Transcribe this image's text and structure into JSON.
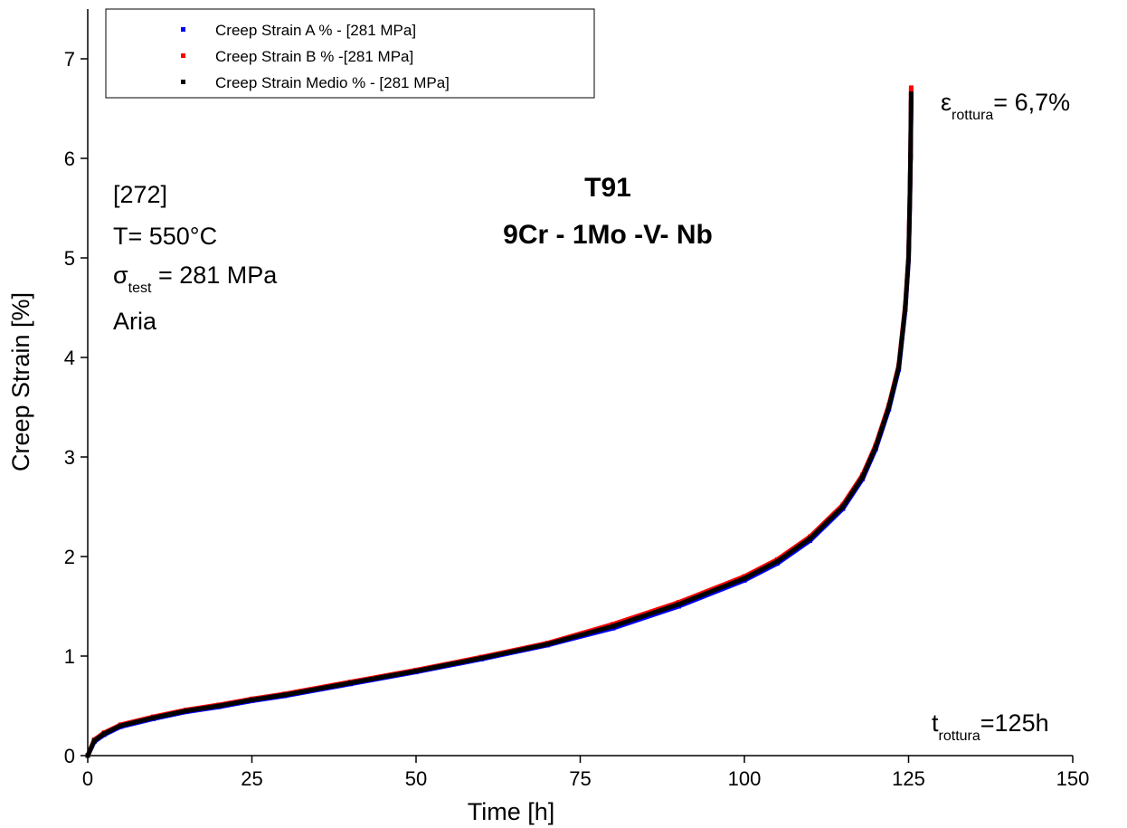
{
  "chart_data": {
    "type": "scatter",
    "x_label": "Time [h]",
    "y_label": "Creep Strain [%]",
    "xlim": [
      0,
      150
    ],
    "xticks": [
      0,
      25,
      50,
      75,
      100,
      125,
      150
    ],
    "ylim": [
      0,
      7.5
    ],
    "yticks": [
      0,
      1,
      2,
      3,
      4,
      5,
      6,
      7
    ],
    "legend": "top-left",
    "x": [
      0,
      1,
      2.5,
      5,
      10,
      15,
      20,
      25,
      30,
      40,
      50,
      60,
      70,
      80,
      90,
      100,
      105,
      110,
      115,
      118,
      120,
      122,
      123.5,
      124.5,
      125,
      125.2,
      125.3,
      125.4
    ],
    "series": [
      {
        "name": "Creep Strain A % - [281 MPa]",
        "color": "#0000ff",
        "values": [
          0,
          0.14,
          0.21,
          0.29,
          0.37,
          0.44,
          0.49,
          0.55,
          0.6,
          0.72,
          0.84,
          0.97,
          1.11,
          1.28,
          1.5,
          1.76,
          1.93,
          2.16,
          2.48,
          2.78,
          3.08,
          3.48,
          3.88,
          4.48,
          4.98,
          5.58,
          6.0,
          6.58
        ]
      },
      {
        "name": "Creep Strain B %  -[281 MPa]",
        "color": "#ff0000",
        "values": [
          0,
          0.16,
          0.23,
          0.31,
          0.39,
          0.46,
          0.51,
          0.57,
          0.62,
          0.74,
          0.86,
          0.99,
          1.13,
          1.32,
          1.54,
          1.8,
          1.97,
          2.2,
          2.52,
          2.82,
          3.12,
          3.52,
          3.92,
          4.52,
          5.02,
          5.62,
          6.04,
          6.71
        ]
      },
      {
        "name": "Creep Strain Medio %  - [281 MPa]",
        "color": "#000000",
        "values": [
          0,
          0.15,
          0.22,
          0.3,
          0.38,
          0.45,
          0.5,
          0.56,
          0.61,
          0.73,
          0.85,
          0.98,
          1.12,
          1.3,
          1.52,
          1.78,
          1.95,
          2.18,
          2.5,
          2.8,
          3.1,
          3.5,
          3.9,
          4.5,
          5.0,
          5.6,
          6.02,
          6.65
        ]
      }
    ],
    "annotations": {
      "ref": "[272]",
      "temperature": "T= 550°C",
      "stress": {
        "symbol": "σ",
        "subscript": "test",
        "text": " = 281 MPa"
      },
      "atmosphere": "Aria",
      "material": "T91",
      "composition": "9Cr - 1Mo -V- Nb",
      "rupture_strain": {
        "symbol": "ε",
        "subscript": "rottura",
        "text": "= 6,7%"
      },
      "rupture_time": {
        "symbol": "t",
        "subscript": "rottura",
        "text": "=125h"
      }
    }
  }
}
